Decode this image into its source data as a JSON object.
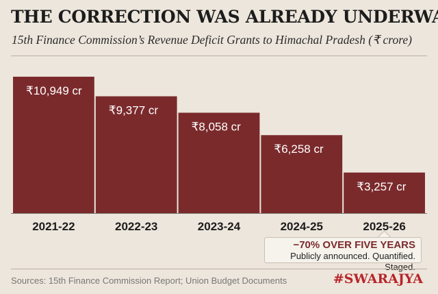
{
  "header": {
    "title": "THE CORRECTION WAS ALREADY UNDERWAY",
    "subtitle": "15th Finance Commission’s Revenue Deficit Grants to Himachal Pradesh (₹ crore)"
  },
  "chart_data": {
    "type": "bar",
    "categories": [
      "2021-22",
      "2022-23",
      "2023-24",
      "2024-25",
      "2025-26"
    ],
    "values": [
      10949,
      9377,
      8058,
      6258,
      3257
    ],
    "data_labels": [
      "₹10,949 cr",
      "₹9,377 cr",
      "₹8,058 cr",
      "₹6,258 cr",
      "₹3,257 cr"
    ],
    "bar_color": "#7b2a2c",
    "ylim": [
      0,
      11000
    ],
    "grid": false,
    "legend": "none"
  },
  "callout": {
    "headline": "−70% OVER FIVE YEARS",
    "subtext": "Publicly announced. Quantified. Staged."
  },
  "footer": {
    "sources": "Sources: 15th Finance Commission Report; Union Budget Documents",
    "brand": "#SWARAJYA"
  },
  "colors": {
    "background": "#ede6dc",
    "accent": "#7b2a2c",
    "brand": "#b8252a"
  }
}
